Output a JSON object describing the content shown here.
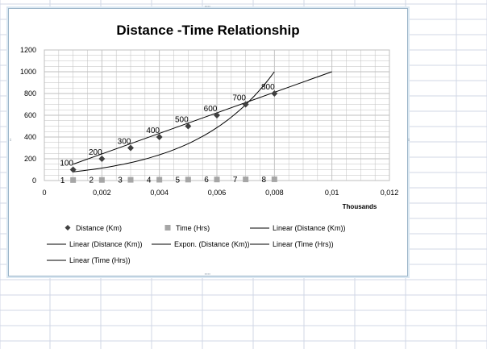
{
  "chart_data": {
    "type": "scatter",
    "title": "Distance -Time Relationship",
    "x_axis_unit_label": "Thousands",
    "xlim": [
      0,
      0.012
    ],
    "ylim": [
      0,
      1200
    ],
    "x_tick_labels": [
      "0",
      "0,002",
      "0,004",
      "0,006",
      "0,008",
      "0,01",
      "0,012"
    ],
    "y_tick_labels": [
      "0",
      "200",
      "400",
      "600",
      "800",
      "1000",
      "1200"
    ],
    "grid": true,
    "legend_position": "bottom",
    "series": [
      {
        "name": "Distance (Km)",
        "marker": "diamond",
        "color": "#404040",
        "x": [
          0.001,
          0.002,
          0.003,
          0.004,
          0.005,
          0.006,
          0.007,
          0.008
        ],
        "y": [
          100,
          200,
          300,
          400,
          500,
          600,
          700,
          800
        ],
        "data_labels": [
          "100",
          "200",
          "300",
          "400",
          "500",
          "600",
          "700",
          "800"
        ]
      },
      {
        "name": "Time (Hrs)",
        "marker": "square",
        "color": "#a6a6a6",
        "x": [
          0.001,
          0.002,
          0.003,
          0.004,
          0.005,
          0.006,
          0.007,
          0.008
        ],
        "y": [
          1,
          2,
          3,
          4,
          5,
          6,
          7,
          8
        ],
        "data_labels": [
          "1",
          "2",
          "3",
          "4",
          "5",
          "6",
          "7",
          "8"
        ]
      }
    ],
    "trendlines": [
      {
        "type": "linear",
        "x_range": [
          0.001,
          0.01
        ],
        "y_at_start": 150,
        "y_at_end": 1000
      },
      {
        "type": "exponential",
        "x_range": [
          0.001,
          0.008
        ],
        "y_at_start": 80,
        "y_at_end": 1000
      }
    ],
    "legend": [
      {
        "label": "Distance (Km)",
        "symbol": "diamond",
        "color": "#404040"
      },
      {
        "label": "Time (Hrs)",
        "symbol": "square",
        "color": "#a6a6a6"
      },
      {
        "label": "Linear (Distance (Km))",
        "symbol": "line",
        "color": "#000000"
      },
      {
        "label": "Linear (Distance (Km))",
        "symbol": "line",
        "color": "#000000"
      },
      {
        "label": "Expon. (Distance (Km))",
        "symbol": "line",
        "color": "#000000"
      },
      {
        "label": "Linear (Time (Hrs))",
        "symbol": "line",
        "color": "#000000"
      },
      {
        "label": "Linear (Time (Hrs))",
        "symbol": "line",
        "color": "#000000"
      }
    ]
  },
  "colors": {
    "sheet_gridline": "#d0d7e5",
    "chart_border": "#9bb5c9",
    "plot_gridline": "#bfbfbf"
  }
}
